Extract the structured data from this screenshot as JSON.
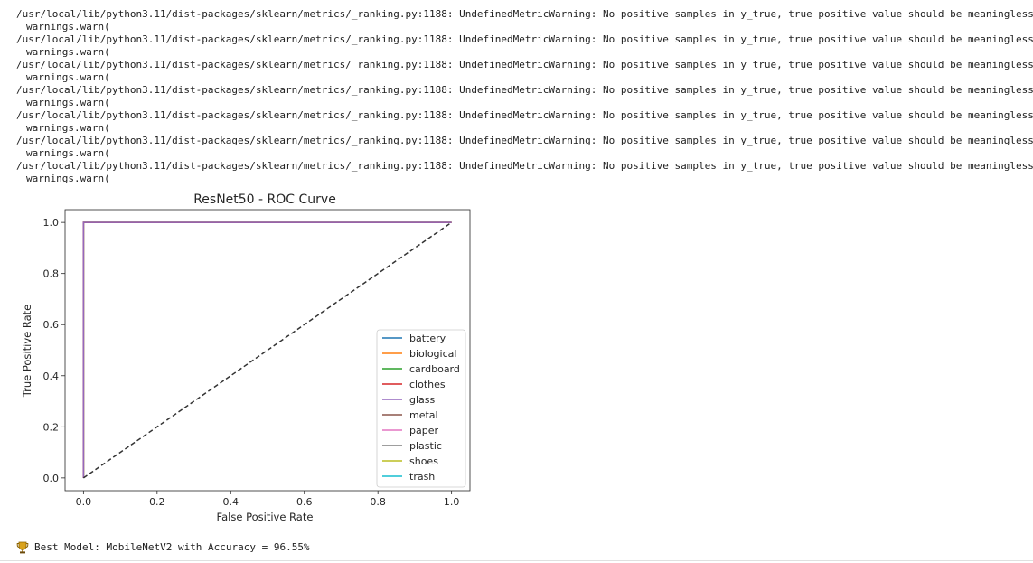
{
  "output": {
    "warnings": [
      {
        "path_line": "/usr/local/lib/python3.11/dist-packages/sklearn/metrics/_ranking.py:1188: UndefinedMetricWarning: No positive samples in y_true, true positive value should be meaningless",
        "call_line": "warnings.warn("
      },
      {
        "path_line": "/usr/local/lib/python3.11/dist-packages/sklearn/metrics/_ranking.py:1188: UndefinedMetricWarning: No positive samples in y_true, true positive value should be meaningless",
        "call_line": "warnings.warn("
      },
      {
        "path_line": "/usr/local/lib/python3.11/dist-packages/sklearn/metrics/_ranking.py:1188: UndefinedMetricWarning: No positive samples in y_true, true positive value should be meaningless",
        "call_line": "warnings.warn("
      },
      {
        "path_line": "/usr/local/lib/python3.11/dist-packages/sklearn/metrics/_ranking.py:1188: UndefinedMetricWarning: No positive samples in y_true, true positive value should be meaningless",
        "call_line": "warnings.warn("
      },
      {
        "path_line": "/usr/local/lib/python3.11/dist-packages/sklearn/metrics/_ranking.py:1188: UndefinedMetricWarning: No positive samples in y_true, true positive value should be meaningless",
        "call_line": "warnings.warn("
      },
      {
        "path_line": "/usr/local/lib/python3.11/dist-packages/sklearn/metrics/_ranking.py:1188: UndefinedMetricWarning: No positive samples in y_true, true positive value should be meaningless",
        "call_line": "warnings.warn("
      },
      {
        "path_line": "/usr/local/lib/python3.11/dist-packages/sklearn/metrics/_ranking.py:1188: UndefinedMetricWarning: No positive samples in y_true, true positive value should be meaningless",
        "call_line": "warnings.warn("
      }
    ],
    "result_icon": "trophy-icon",
    "result_text": "Best Model: MobileNetV2 with Accuracy = 96.55%"
  },
  "chart_data": {
    "type": "line",
    "title": "ResNet50 - ROC Curve",
    "xlabel": "False Positive Rate",
    "ylabel": "True Positive Rate",
    "xlim": [
      -0.05,
      1.05
    ],
    "ylim": [
      -0.05,
      1.05
    ],
    "xticks": [
      0.0,
      0.2,
      0.4,
      0.6,
      0.8,
      1.0
    ],
    "yticks": [
      0.0,
      0.2,
      0.4,
      0.6,
      0.8,
      1.0
    ],
    "xtick_labels": [
      "0.0",
      "0.2",
      "0.4",
      "0.6",
      "0.8",
      "1.0"
    ],
    "ytick_labels": [
      "0.0",
      "0.2",
      "0.4",
      "0.6",
      "0.8",
      "1.0"
    ],
    "grid": false,
    "legend_position": "lower-right",
    "series": [
      {
        "name": "battery",
        "color": "#1f77b4",
        "x": [
          0.0,
          0.0,
          1.0
        ],
        "y": [
          0.0,
          1.0,
          1.0
        ]
      },
      {
        "name": "biological",
        "color": "#ff7f0e",
        "x": [
          0.0,
          0.0,
          1.0
        ],
        "y": [
          0.0,
          1.0,
          1.0
        ]
      },
      {
        "name": "cardboard",
        "color": "#2ca02c",
        "x": [
          0.0,
          0.0,
          1.0
        ],
        "y": [
          0.0,
          1.0,
          1.0
        ]
      },
      {
        "name": "clothes",
        "color": "#d62728",
        "x": [
          0.0,
          0.0,
          1.0
        ],
        "y": [
          0.0,
          1.0,
          1.0
        ]
      },
      {
        "name": "glass",
        "color": "#9467bd",
        "x": [
          0.0,
          0.0,
          1.0
        ],
        "y": [
          0.0,
          1.0,
          1.0
        ]
      },
      {
        "name": "metal",
        "color": "#8c564b",
        "x": [],
        "y": []
      },
      {
        "name": "paper",
        "color": "#e377c2",
        "x": [],
        "y": []
      },
      {
        "name": "plastic",
        "color": "#7f7f7f",
        "x": [],
        "y": []
      },
      {
        "name": "shoes",
        "color": "#bcbd22",
        "x": [],
        "y": []
      },
      {
        "name": "trash",
        "color": "#17becf",
        "x": [],
        "y": []
      }
    ],
    "reference_line": {
      "x": [
        0.0,
        1.0
      ],
      "y": [
        0.0,
        1.0
      ],
      "style": "dashed",
      "color": "#333333"
    }
  }
}
